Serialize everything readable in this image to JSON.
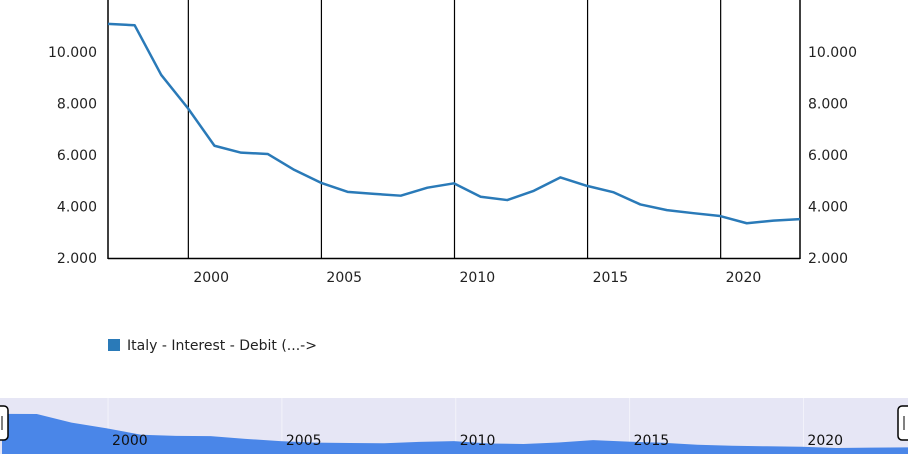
{
  "chart_data": {
    "type": "line",
    "title": "",
    "xlabel": "",
    "ylabel": "",
    "x": [
      1996,
      1997,
      1998,
      1999,
      2000,
      2001,
      2002,
      2003,
      2004,
      2005,
      2006,
      2007,
      2008,
      2009,
      2010,
      2011,
      2012,
      2013,
      2014,
      2015,
      2016,
      2017,
      2018,
      2019,
      2020,
      2021,
      2022
    ],
    "series": [
      {
        "name": "Italy - Interest - Debit (...->",
        "color": "#2a7ab8",
        "values": [
          11090,
          11040,
          9110,
          7820,
          6360,
          6090,
          6040,
          5420,
          4920,
          4570,
          4490,
          4420,
          4730,
          4900,
          4380,
          4250,
          4610,
          5130,
          4800,
          4550,
          4080,
          3860,
          3740,
          3630,
          3350,
          3450,
          3510
        ]
      }
    ],
    "ylim": [
      2000,
      11800
    ],
    "yticks": [
      2000,
      4000,
      6000,
      8000,
      10000
    ],
    "ytick_labels": [
      "2.000",
      "4.000",
      "6.000",
      "8.000",
      "10.000"
    ],
    "xticks": [
      2000,
      2005,
      2010,
      2015,
      2020
    ],
    "xtick_labels": [
      "2000",
      "2005",
      "2010",
      "2015",
      "2020"
    ],
    "grid": "vertical lines at x ticks",
    "legend": "bottom-left",
    "navigator": {
      "fill_color": "#4a86e8",
      "background_color": "#e6e6f5",
      "tick_labels": [
        "2000",
        "2005",
        "2010",
        "2015",
        "2020"
      ]
    }
  }
}
